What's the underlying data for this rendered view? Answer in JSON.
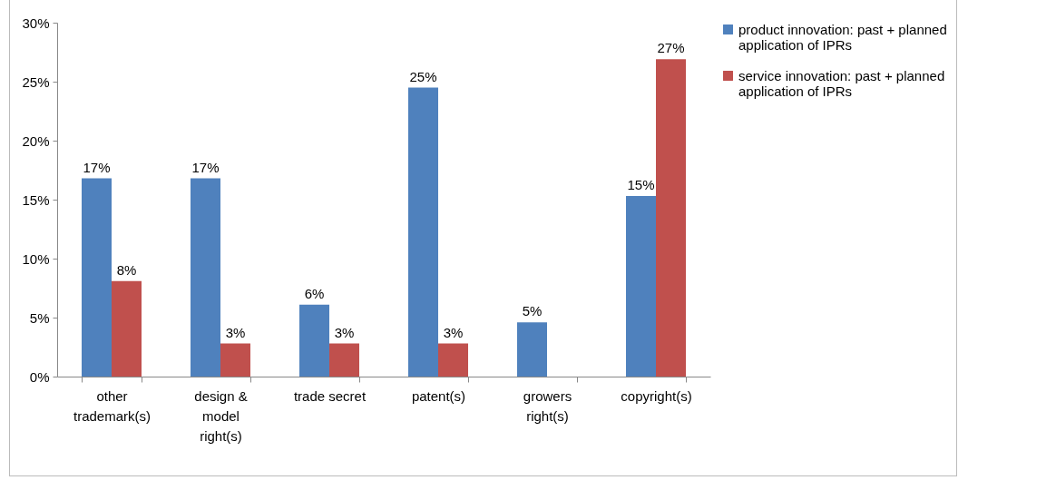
{
  "chart_data": {
    "type": "bar",
    "categories": [
      "other trademark(s)",
      "design & model right(s)",
      "trade secret",
      "patent(s)",
      "growers right(s)",
      "copyright(s)"
    ],
    "series": [
      {
        "name": "product innovation: past + planned application of IPRs",
        "color": "#4f81bd",
        "values": [
          16.8,
          16.8,
          6.1,
          24.5,
          4.6,
          15.3
        ],
        "value_labels": [
          "17%",
          "17%",
          "6%",
          "25%",
          "5%",
          "15%"
        ]
      },
      {
        "name": "service innovation: past + planned application of IPRs",
        "color": "#c0504d",
        "values": [
          8.1,
          2.8,
          2.8,
          2.8,
          null,
          26.9
        ],
        "value_labels": [
          "8%",
          "3%",
          "3%",
          "3%",
          null,
          "27%"
        ]
      }
    ],
    "ylim": [
      0,
      30
    ],
    "yticks": [
      {
        "value": 0,
        "label": "0%"
      },
      {
        "value": 5,
        "label": "5%"
      },
      {
        "value": 10,
        "label": "10%"
      },
      {
        "value": 15,
        "label": "15%"
      },
      {
        "value": 20,
        "label": "20%"
      },
      {
        "value": 25,
        "label": "25%"
      },
      {
        "value": 30,
        "label": "30%"
      }
    ],
    "grid": false,
    "legend": "right"
  }
}
